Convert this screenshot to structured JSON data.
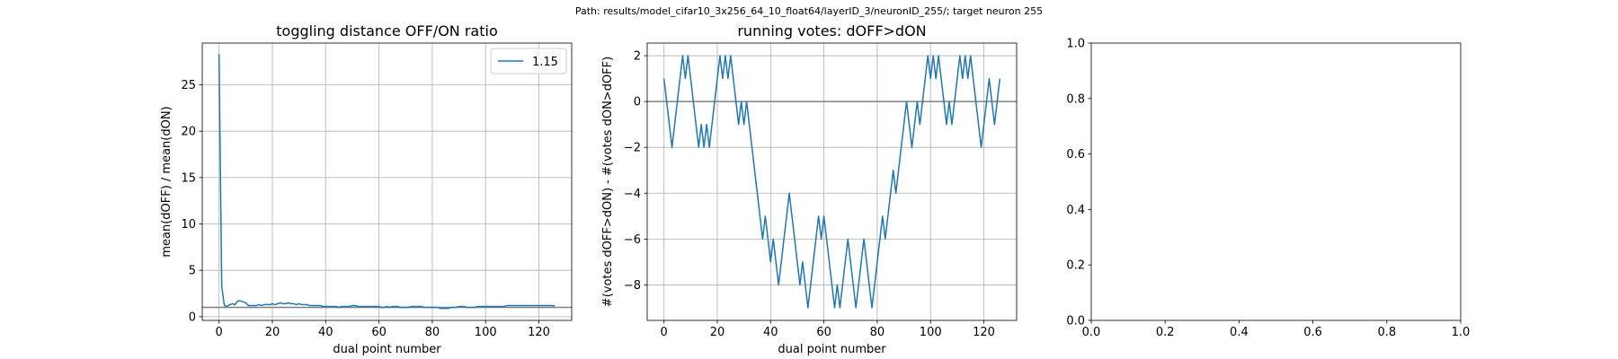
{
  "suptitle": "Path: results/model_cifar10_3x256_64_10_float64/layerID_3/neuronID_255/; target neuron 255",
  "chart_data": [
    {
      "type": "line",
      "title": "toggling distance OFF/ON ratio",
      "xlabel": "dual point number",
      "ylabel": "mean(dOFF) / mean(dON)",
      "xlim": [
        -6.3,
        132.3
      ],
      "ylim": [
        -0.4,
        29.5
      ],
      "xticks": [
        0,
        20,
        40,
        60,
        80,
        100,
        120
      ],
      "yticks": [
        0,
        5,
        10,
        15,
        20,
        25
      ],
      "grid": true,
      "legend": "upper right",
      "hline": 1.0,
      "series": [
        {
          "name": "1.15",
          "color": "#1f77b4",
          "x": [
            0,
            1,
            2,
            3,
            4,
            5,
            6,
            7,
            8,
            9,
            10,
            11,
            12,
            13,
            14,
            15,
            16,
            17,
            18,
            19,
            20,
            21,
            22,
            23,
            24,
            25,
            26,
            27,
            28,
            29,
            30,
            31,
            32,
            33,
            34,
            35,
            36,
            37,
            38,
            39,
            40,
            41,
            42,
            43,
            44,
            45,
            46,
            47,
            48,
            49,
            50,
            51,
            52,
            53,
            54,
            55,
            56,
            57,
            58,
            59,
            60,
            61,
            62,
            63,
            64,
            65,
            66,
            67,
            68,
            69,
            70,
            71,
            72,
            73,
            74,
            75,
            76,
            77,
            78,
            79,
            80,
            81,
            82,
            83,
            84,
            85,
            86,
            87,
            88,
            89,
            90,
            91,
            92,
            93,
            94,
            95,
            96,
            97,
            98,
            99,
            100,
            101,
            102,
            103,
            104,
            105,
            106,
            107,
            108,
            109,
            110,
            111,
            112,
            113,
            114,
            115,
            116,
            117,
            118,
            119,
            120,
            121,
            122,
            123,
            124,
            125,
            126
          ],
          "y": [
            28.3,
            3.3,
            1.2,
            1.1,
            1.3,
            1.4,
            1.3,
            1.7,
            1.7,
            1.6,
            1.5,
            1.2,
            1.2,
            1.2,
            1.2,
            1.3,
            1.2,
            1.3,
            1.3,
            1.3,
            1.4,
            1.3,
            1.4,
            1.5,
            1.4,
            1.4,
            1.5,
            1.4,
            1.4,
            1.3,
            1.4,
            1.3,
            1.3,
            1.3,
            1.2,
            1.2,
            1.2,
            1.2,
            1.2,
            1.1,
            1.1,
            1.1,
            1.1,
            1.1,
            1.1,
            1.0,
            1.1,
            1.1,
            1.1,
            1.1,
            1.2,
            1.2,
            1.1,
            1.1,
            1.1,
            1.1,
            1.1,
            1.1,
            1.1,
            1.1,
            1.1,
            1.0,
            1.0,
            1.1,
            1.0,
            1.1,
            1.1,
            1.1,
            1.0,
            1.0,
            1.0,
            1.0,
            1.1,
            1.1,
            1.1,
            1.1,
            1.1,
            1.0,
            1.0,
            1.0,
            1.0,
            1.0,
            1.0,
            0.9,
            0.9,
            0.9,
            0.9,
            1.0,
            1.0,
            1.0,
            1.1,
            1.1,
            1.1,
            1.0,
            1.0,
            1.0,
            1.0,
            1.1,
            1.1,
            1.1,
            1.1,
            1.1,
            1.1,
            1.1,
            1.1,
            1.1,
            1.1,
            1.1,
            1.2,
            1.2,
            1.2,
            1.2,
            1.2,
            1.2,
            1.2,
            1.2,
            1.2,
            1.2,
            1.2,
            1.2,
            1.2,
            1.2,
            1.2,
            1.2,
            1.2,
            1.2,
            1.15
          ]
        }
      ]
    },
    {
      "type": "line",
      "title": "running votes: dOFF>dON",
      "xlabel": "dual point number",
      "ylabel": "#(votes dOFF>dON) - #(votes dON>dOFF)",
      "xlim": [
        -6.3,
        132.3
      ],
      "ylim": [
        -9.55,
        2.55
      ],
      "xticks": [
        0,
        20,
        40,
        60,
        80,
        100,
        120
      ],
      "yticks": [
        -8,
        -6,
        -4,
        -2,
        0,
        2
      ],
      "grid": true,
      "hline": 0,
      "series": [
        {
          "color": "#1f77b4",
          "x": [
            0,
            1,
            2,
            3,
            4,
            5,
            6,
            7,
            8,
            9,
            10,
            11,
            12,
            13,
            14,
            15,
            16,
            17,
            18,
            19,
            20,
            21,
            22,
            23,
            24,
            25,
            26,
            27,
            28,
            29,
            30,
            31,
            32,
            33,
            34,
            35,
            36,
            37,
            38,
            39,
            40,
            41,
            42,
            43,
            44,
            45,
            46,
            47,
            48,
            49,
            50,
            51,
            52,
            53,
            54,
            55,
            56,
            57,
            58,
            59,
            60,
            61,
            62,
            63,
            64,
            65,
            66,
            67,
            68,
            69,
            70,
            71,
            72,
            73,
            74,
            75,
            76,
            77,
            78,
            79,
            80,
            81,
            82,
            83,
            84,
            85,
            86,
            87,
            88,
            89,
            90,
            91,
            92,
            93,
            94,
            95,
            96,
            97,
            98,
            99,
            100,
            101,
            102,
            103,
            104,
            105,
            106,
            107,
            108,
            109,
            110,
            111,
            112,
            113,
            114,
            115,
            116,
            117,
            118,
            119,
            120,
            121,
            122,
            123,
            124,
            125,
            126
          ],
          "y": [
            1,
            0,
            -1,
            -2,
            -1,
            0,
            1,
            2,
            1,
            2,
            1,
            0,
            -1,
            -2,
            -1,
            -2,
            -1,
            -2,
            -1,
            0,
            1,
            2,
            1,
            2,
            1,
            2,
            1,
            0,
            -1,
            0,
            -1,
            0,
            -1,
            -2,
            -3,
            -4,
            -5,
            -6,
            -5,
            -6,
            -7,
            -6,
            -7,
            -8,
            -7,
            -6,
            -5,
            -4,
            -5,
            -6,
            -7,
            -8,
            -7,
            -8,
            -9,
            -8,
            -7,
            -6,
            -5,
            -6,
            -5,
            -6,
            -7,
            -8,
            -9,
            -8,
            -9,
            -8,
            -7,
            -6,
            -7,
            -8,
            -9,
            -8,
            -7,
            -6,
            -7,
            -8,
            -9,
            -8,
            -7,
            -6,
            -5,
            -6,
            -5,
            -4,
            -3,
            -4,
            -3,
            -2,
            -1,
            0,
            -1,
            -2,
            -1,
            0,
            -1,
            0,
            1,
            2,
            1,
            2,
            1,
            2,
            1,
            0,
            -1,
            0,
            -1,
            0,
            1,
            2,
            1,
            2,
            1,
            2,
            1,
            0,
            -1,
            -2,
            -1,
            0,
            1,
            0,
            -1,
            0,
            1
          ]
        }
      ]
    },
    {
      "type": "line",
      "title": "",
      "xlabel": "",
      "ylabel": "",
      "xlim": [
        0,
        1
      ],
      "ylim": [
        0,
        1
      ],
      "xticks": [
        0.0,
        0.2,
        0.4,
        0.6,
        0.8,
        1.0
      ],
      "yticks": [
        0.0,
        0.2,
        0.4,
        0.6,
        0.8,
        1.0
      ],
      "grid": false,
      "series": []
    }
  ]
}
